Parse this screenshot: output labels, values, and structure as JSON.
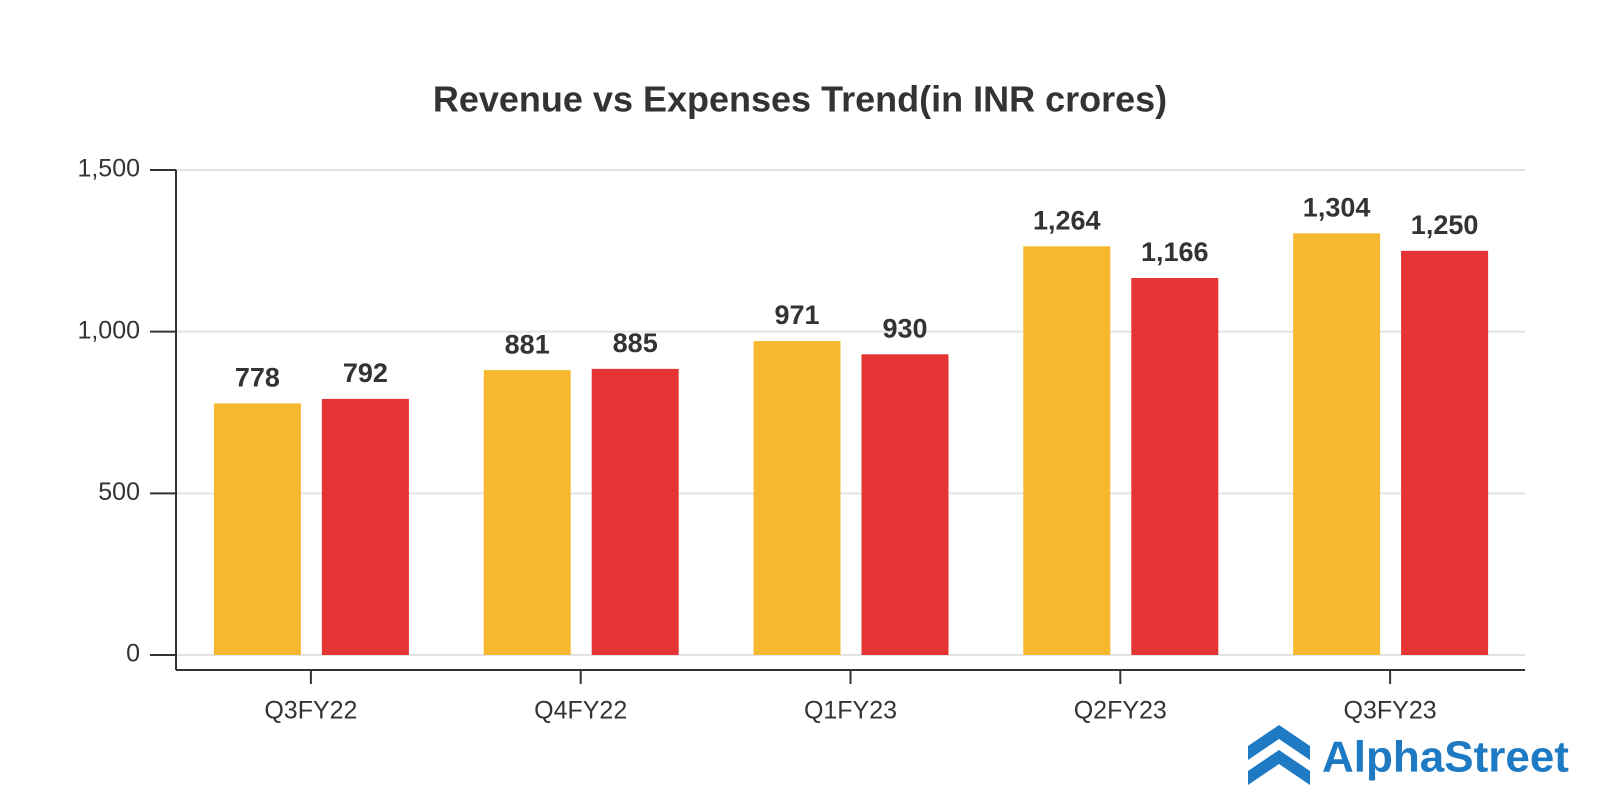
{
  "chart_data": {
    "type": "bar",
    "title": "Revenue vs Expenses Trend(in INR crores)",
    "categories": [
      "Q3FY22",
      "Q4FY22",
      "Q1FY23",
      "Q2FY23",
      "Q3FY23"
    ],
    "series": [
      {
        "color": "#f5b82e",
        "values": [
          778,
          881,
          971,
          1264,
          1304
        ],
        "value_labels": [
          "778",
          "881",
          "971",
          "1,264",
          "1,304"
        ]
      },
      {
        "color": "#e43434",
        "values": [
          792,
          885,
          930,
          1166,
          1250
        ],
        "value_labels": [
          "792",
          "885",
          "930",
          "1,166",
          "1,250"
        ]
      }
    ],
    "ylim": [
      0,
      1500
    ],
    "yticks": [
      0,
      500,
      {
        "value": 1000,
        "label": "1,000"
      },
      {
        "value": 1500,
        "label": "1,500"
      }
    ],
    "grid": true
  },
  "brand": "AlphaStreet"
}
